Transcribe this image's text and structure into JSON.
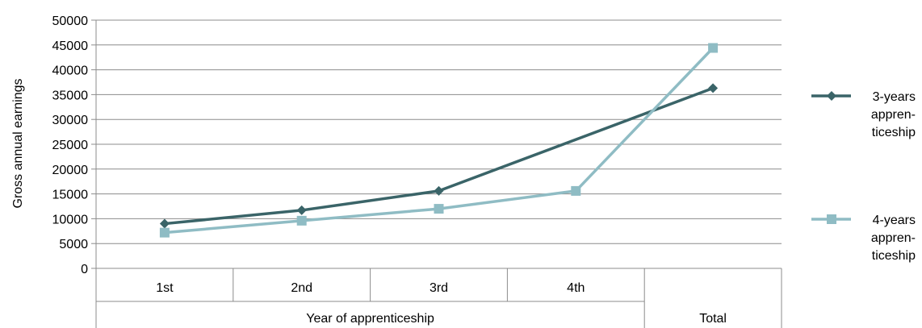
{
  "chart_data": {
    "type": "line",
    "categories": [
      "1st",
      "2nd",
      "3rd",
      "4th",
      ""
    ],
    "group_labels": [
      "Year of apprenticeship",
      "Total"
    ],
    "ylabel": "Gross annual earnings",
    "ylim": [
      0,
      50000
    ],
    "yticks": [
      "0",
      "5000",
      "10000",
      "15000",
      "20000",
      "25000",
      "30000",
      "35000",
      "40000",
      "45000",
      "50000"
    ],
    "grid": true,
    "legend_position": "right",
    "series": [
      {
        "name_lines": [
          "3-years",
          "appren-",
          "ticeship"
        ],
        "marker": "diamond",
        "color": "#3a6468",
        "values": [
          9000,
          11700,
          15600,
          null,
          36300
        ],
        "connect_gap": true
      },
      {
        "name_lines": [
          "4-years",
          "appren-",
          "ticeship"
        ],
        "marker": "square",
        "color": "#8fbcc4",
        "values": [
          7200,
          9600,
          12000,
          15600,
          44400
        ],
        "connect_gap": false
      }
    ]
  }
}
